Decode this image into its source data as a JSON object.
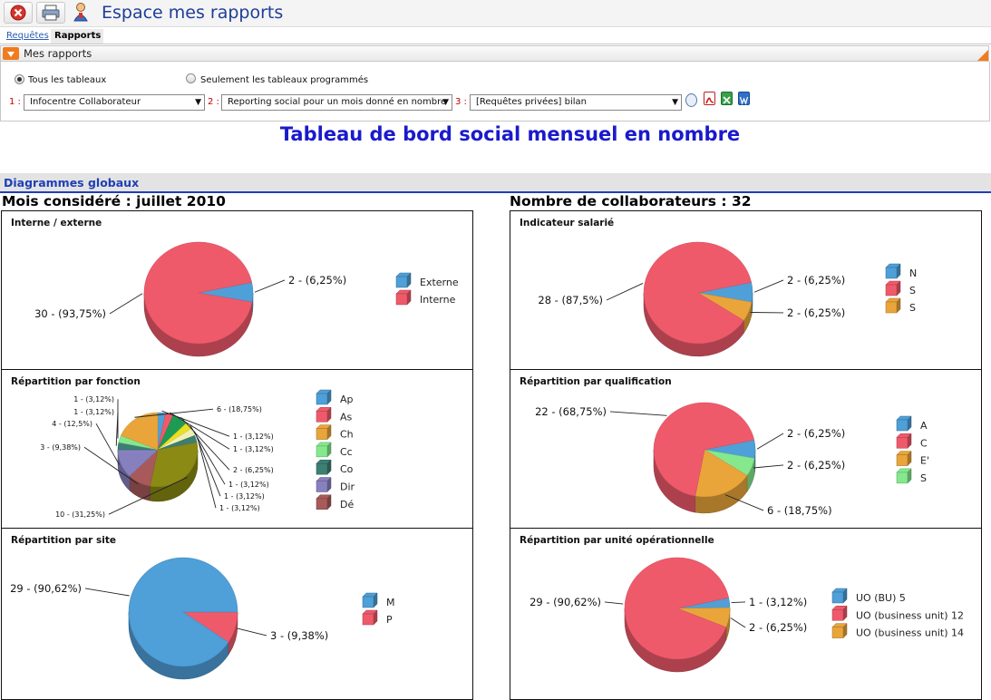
{
  "app": {
    "title": "Espace mes rapports"
  },
  "toolbar": {
    "icons": [
      "close-icon",
      "print-icon",
      "user-icon"
    ]
  },
  "tabs": [
    {
      "label": "Requêtes",
      "active": false
    },
    {
      "label": "Rapports",
      "active": true
    }
  ],
  "panel": {
    "title": "Mes rapports",
    "radio_all": "Tous les tableaux",
    "radio_scheduled": "Seulement les tableaux programmés",
    "selected_radio": "all",
    "selects": [
      {
        "num": "1 :",
        "value": "Infocentre Collaborateur"
      },
      {
        "num": "2 :",
        "value": "Reporting social pour un mois donné en nombre"
      },
      {
        "num": "3 :",
        "value": "[Requêtes privées] bilan"
      }
    ],
    "export_icons": [
      "globe-icon",
      "pdf-icon",
      "excel-icon",
      "word-icon"
    ]
  },
  "page": {
    "title": "Tableau de bord social mensuel en nombre"
  },
  "section": {
    "title": "Diagrammes globaux"
  },
  "summary": {
    "left": "Mois considéré : juillet 2010",
    "right": "Nombre de collaborateurs : 32"
  },
  "colors": {
    "blue": "#4f9fd8",
    "red": "#ef5a6b",
    "orange": "#e9a53a",
    "green": "#85e88d",
    "teal": "#3c7f73",
    "purple": "#8780bf",
    "brown": "#a85a5a",
    "olive": "#8a8a14",
    "yellow": "#e8e020",
    "darkgreen": "#1f9a55",
    "cream": "#f3efb2"
  },
  "chart_data": [
    {
      "type": "pie",
      "title": "Interne / externe",
      "slices": [
        {
          "label": "2 - (6,25%)",
          "value": 2,
          "color": "#4f9fd8"
        },
        {
          "label": "30 - (93,75%)",
          "value": 30,
          "color": "#ef5a6b"
        }
      ],
      "legend": [
        "Externe",
        "Interne"
      ]
    },
    {
      "type": "pie",
      "title": "Indicateur salarié",
      "slices": [
        {
          "label": "2 - (6,25%)",
          "value": 2,
          "color": "#4f9fd8"
        },
        {
          "label": "2 - (6,25%)",
          "value": 2,
          "color": "#e9a53a"
        },
        {
          "label": "28 - (87,5%)",
          "value": 28,
          "color": "#ef5a6b"
        }
      ],
      "legend": [
        "N",
        "S",
        "S"
      ]
    },
    {
      "type": "pie",
      "title": "Répartition par fonction",
      "slices": [
        {
          "label": "1 - (3,12%)",
          "value": 1,
          "color": "#4f9fd8"
        },
        {
          "label": "1 - (3,12%)",
          "value": 1,
          "color": "#ef5a6b"
        },
        {
          "label": "2 - (6,25%)",
          "value": 2,
          "color": "#1f9a55"
        },
        {
          "label": "1 - (3,12%)",
          "value": 1,
          "color": "#e8e020"
        },
        {
          "label": "1 - (3,12%)",
          "value": 1,
          "color": "#f3efb2"
        },
        {
          "label": "1 - (3,12%)",
          "value": 1,
          "color": "#3c7f73"
        },
        {
          "label": "10 - (31,25%)",
          "value": 10,
          "color": "#8a8a14"
        },
        {
          "label": "3 - (9,38%)",
          "value": 3,
          "color": "#a85a5a"
        },
        {
          "label": "4 - (12,5%)",
          "value": 4,
          "color": "#8780bf"
        },
        {
          "label": "1 - (3,12%)",
          "value": 1,
          "color": "#3c7f73"
        },
        {
          "label": "1 - (3,12%)",
          "value": 1,
          "color": "#85e88d"
        },
        {
          "label": "6 - (18,75%)",
          "value": 6,
          "color": "#e9a53a"
        }
      ],
      "legend": [
        "Ap",
        "As",
        "Ch",
        "Cc",
        "Co",
        "Dir",
        "Dé"
      ]
    },
    {
      "type": "pie",
      "title": "Répartition par qualification",
      "slices": [
        {
          "label": "2 - (6,25%)",
          "value": 2,
          "color": "#4f9fd8"
        },
        {
          "label": "2 - (6,25%)",
          "value": 2,
          "color": "#85e88d"
        },
        {
          "label": "6 - (18,75%)",
          "value": 6,
          "color": "#e9a53a"
        },
        {
          "label": "22 - (68,75%)",
          "value": 22,
          "color": "#ef5a6b"
        }
      ],
      "legend": [
        "A",
        "C",
        "E'",
        "S"
      ]
    },
    {
      "type": "pie",
      "title": "Répartition par site",
      "slices": [
        {
          "label": "3 - (9,38%)",
          "value": 3,
          "color": "#ef5a6b"
        },
        {
          "label": "29 - (90,62%)",
          "value": 29,
          "color": "#4f9fd8"
        }
      ],
      "legend": [
        "M",
        "P"
      ]
    },
    {
      "type": "pie",
      "title": "Répartition par unité opérationnelle",
      "slices": [
        {
          "label": "1 - (3,12%)",
          "value": 1,
          "color": "#4f9fd8"
        },
        {
          "label": "2 - (6,25%)",
          "value": 2,
          "color": "#e9a53a"
        },
        {
          "label": "29 - (90,62%)",
          "value": 29,
          "color": "#ef5a6b"
        }
      ],
      "legend": [
        "UO (BU) 5",
        "UO (business unit) 12",
        "UO (business unit) 14"
      ]
    }
  ]
}
